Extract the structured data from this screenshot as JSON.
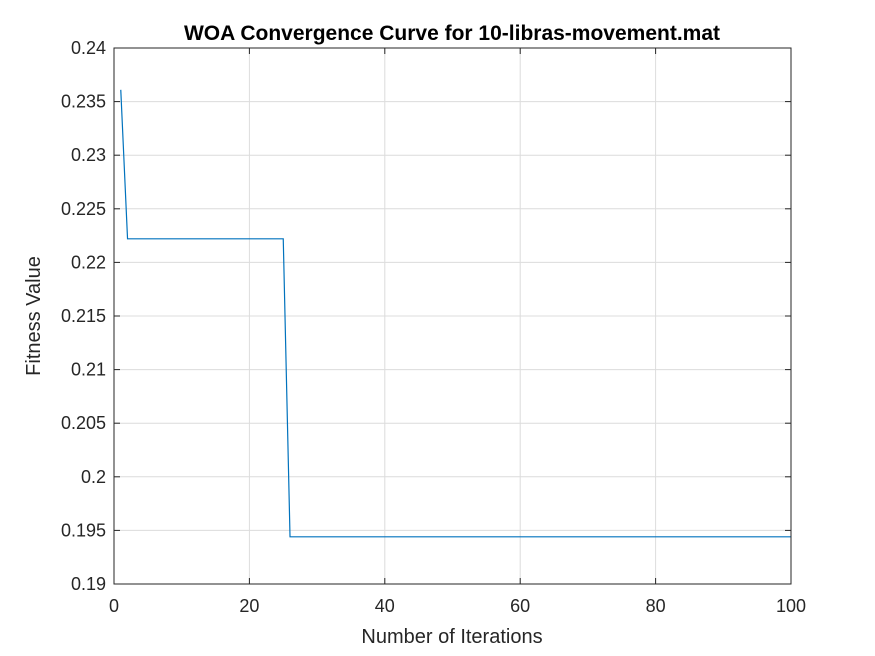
{
  "chart_data": {
    "type": "line",
    "title": "WOA Convergence Curve for 10-libras-movement.mat",
    "xlabel": "Number of Iterations",
    "ylabel": "Fitness Value",
    "xlim": [
      0,
      100
    ],
    "ylim": [
      0.19,
      0.24
    ],
    "xticks": [
      0,
      20,
      40,
      60,
      80,
      100
    ],
    "xtick_labels": [
      "0",
      "20",
      "40",
      "60",
      "80",
      "100"
    ],
    "yticks": [
      0.19,
      0.195,
      0.2,
      0.205,
      0.21,
      0.215,
      0.22,
      0.225,
      0.23,
      0.235,
      0.24
    ],
    "ytick_labels": [
      "0.19",
      "0.195",
      "0.2",
      "0.205",
      "0.21",
      "0.215",
      "0.22",
      "0.225",
      "0.23",
      "0.235",
      "0.24"
    ],
    "grid": true,
    "series": [
      {
        "color": "#0072BD",
        "x": [
          1,
          2,
          25,
          26,
          100
        ],
        "y": [
          0.2361,
          0.2222,
          0.2222,
          0.1944,
          0.1944
        ]
      }
    ]
  }
}
